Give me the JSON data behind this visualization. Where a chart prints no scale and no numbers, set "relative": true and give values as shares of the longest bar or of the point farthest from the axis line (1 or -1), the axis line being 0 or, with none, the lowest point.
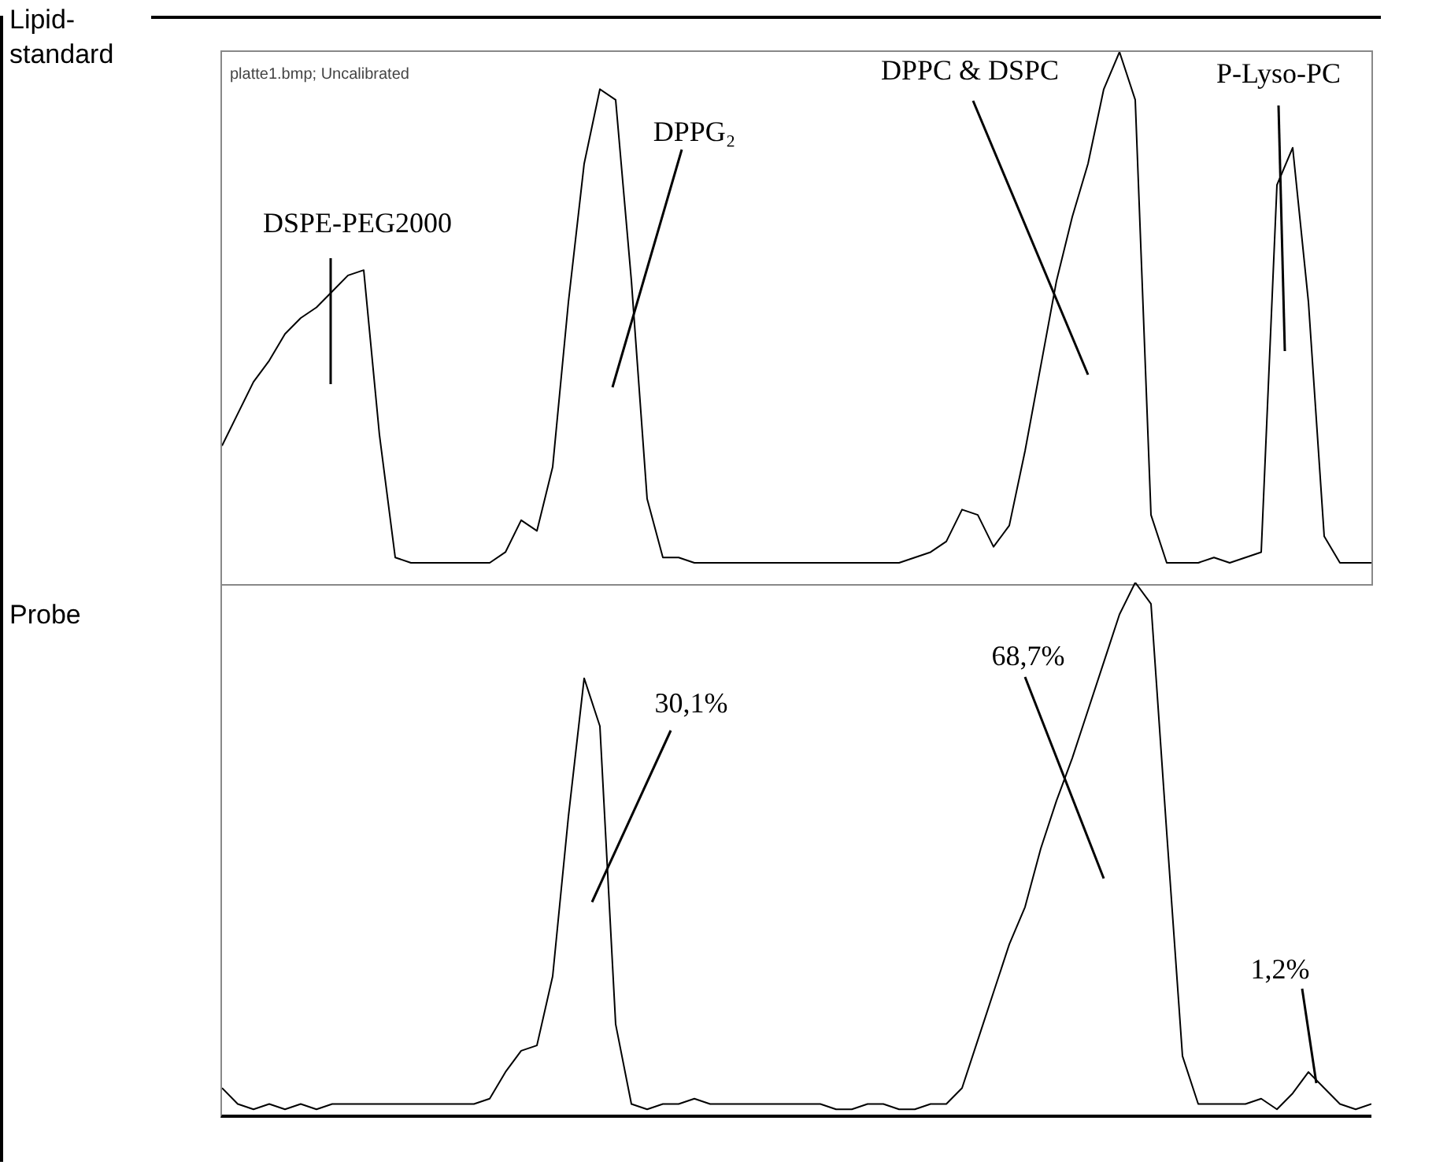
{
  "chart_data": [
    {
      "type": "line",
      "title": "Lipid-standard",
      "relative": true,
      "categories": [
        null,
        null,
        null,
        null,
        null,
        null,
        null,
        null,
        null,
        null,
        null,
        null,
        null,
        null,
        null,
        null,
        null,
        null,
        null,
        null,
        null,
        null,
        null,
        null,
        null,
        null,
        null,
        null,
        null,
        null,
        null,
        null,
        null,
        null,
        null,
        null,
        null,
        null,
        null,
        null,
        null,
        null,
        null,
        null,
        null,
        null,
        null,
        null,
        null,
        null,
        null,
        null,
        null,
        null,
        null,
        null,
        null,
        null,
        null,
        null,
        null,
        null,
        null,
        null,
        null,
        null,
        null,
        null,
        null,
        null,
        null,
        null,
        null,
        null
      ],
      "series": [
        {
          "color": "#000000",
          "values": [
            0.26,
            0.32,
            0.38,
            0.42,
            0.47,
            0.5,
            0.52,
            0.55,
            0.58,
            0.59,
            0.28,
            0.05,
            0.04,
            0.04,
            0.04,
            0.04,
            0.04,
            0.04,
            0.06,
            0.12,
            0.1,
            0.22,
            0.53,
            0.79,
            0.93,
            0.91,
            0.57,
            0.16,
            0.05,
            0.05,
            0.04,
            0.04,
            0.04,
            0.04,
            0.04,
            0.04,
            0.04,
            0.04,
            0.04,
            0.04,
            0.04,
            0.04,
            0.04,
            0.04,
            0.05,
            0.06,
            0.08,
            0.14,
            0.13,
            0.07,
            0.11,
            0.25,
            0.41,
            0.57,
            0.69,
            0.79,
            0.93,
            1,
            0.91,
            0.13,
            0.04,
            0.04,
            0.04,
            0.05,
            0.04,
            0.05,
            0.06,
            0.75,
            0.82,
            0.53,
            0.09,
            0.04,
            0.04,
            0.04
          ]
        }
      ],
      "annotations": [
        "platte1.bmp; Uncalibrated",
        "DSPE-PEG2000",
        "DPPG₂",
        "DPPC & DSPC",
        "P-Lyso-PC"
      ]
    },
    {
      "type": "line",
      "title": "Probe",
      "relative": true,
      "categories": [
        null,
        null,
        null,
        null,
        null,
        null,
        null,
        null,
        null,
        null,
        null,
        null,
        null,
        null,
        null,
        null,
        null,
        null,
        null,
        null,
        null,
        null,
        null,
        null,
        null,
        null,
        null,
        null,
        null,
        null,
        null,
        null,
        null,
        null,
        null,
        null,
        null,
        null,
        null,
        null,
        null,
        null,
        null,
        null,
        null,
        null,
        null,
        null,
        null,
        null,
        null,
        null,
        null,
        null,
        null,
        null,
        null,
        null,
        null,
        null,
        null,
        null,
        null,
        null,
        null,
        null,
        null,
        null,
        null,
        null,
        null,
        null,
        null,
        null
      ],
      "series": [
        {
          "color": "#000000",
          "values": [
            0.05,
            0.02,
            0.01,
            0.02,
            0.01,
            0.02,
            0.01,
            0.02,
            0.02,
            0.02,
            0.02,
            0.02,
            0.02,
            0.02,
            0.02,
            0.02,
            0.02,
            0.03,
            0.08,
            0.12,
            0.13,
            0.26,
            0.56,
            0.82,
            0.73,
            0.17,
            0.02,
            0.01,
            0.02,
            0.02,
            0.03,
            0.02,
            0.02,
            0.02,
            0.02,
            0.02,
            0.02,
            0.02,
            0.02,
            0.01,
            0.01,
            0.02,
            0.02,
            0.01,
            0.01,
            0.02,
            0.02,
            0.05,
            0.14,
            0.23,
            0.32,
            0.39,
            0.5,
            0.59,
            0.67,
            0.76,
            0.85,
            0.94,
            1,
            0.96,
            0.53,
            0.11,
            0.02,
            0.02,
            0.02,
            0.02,
            0.03,
            0.01,
            0.04,
            0.08,
            0.05,
            0.02,
            0.01,
            0.02
          ]
        }
      ],
      "annotations": [
        "30,1%",
        "68,7%",
        "1,2%"
      ]
    }
  ]
}
